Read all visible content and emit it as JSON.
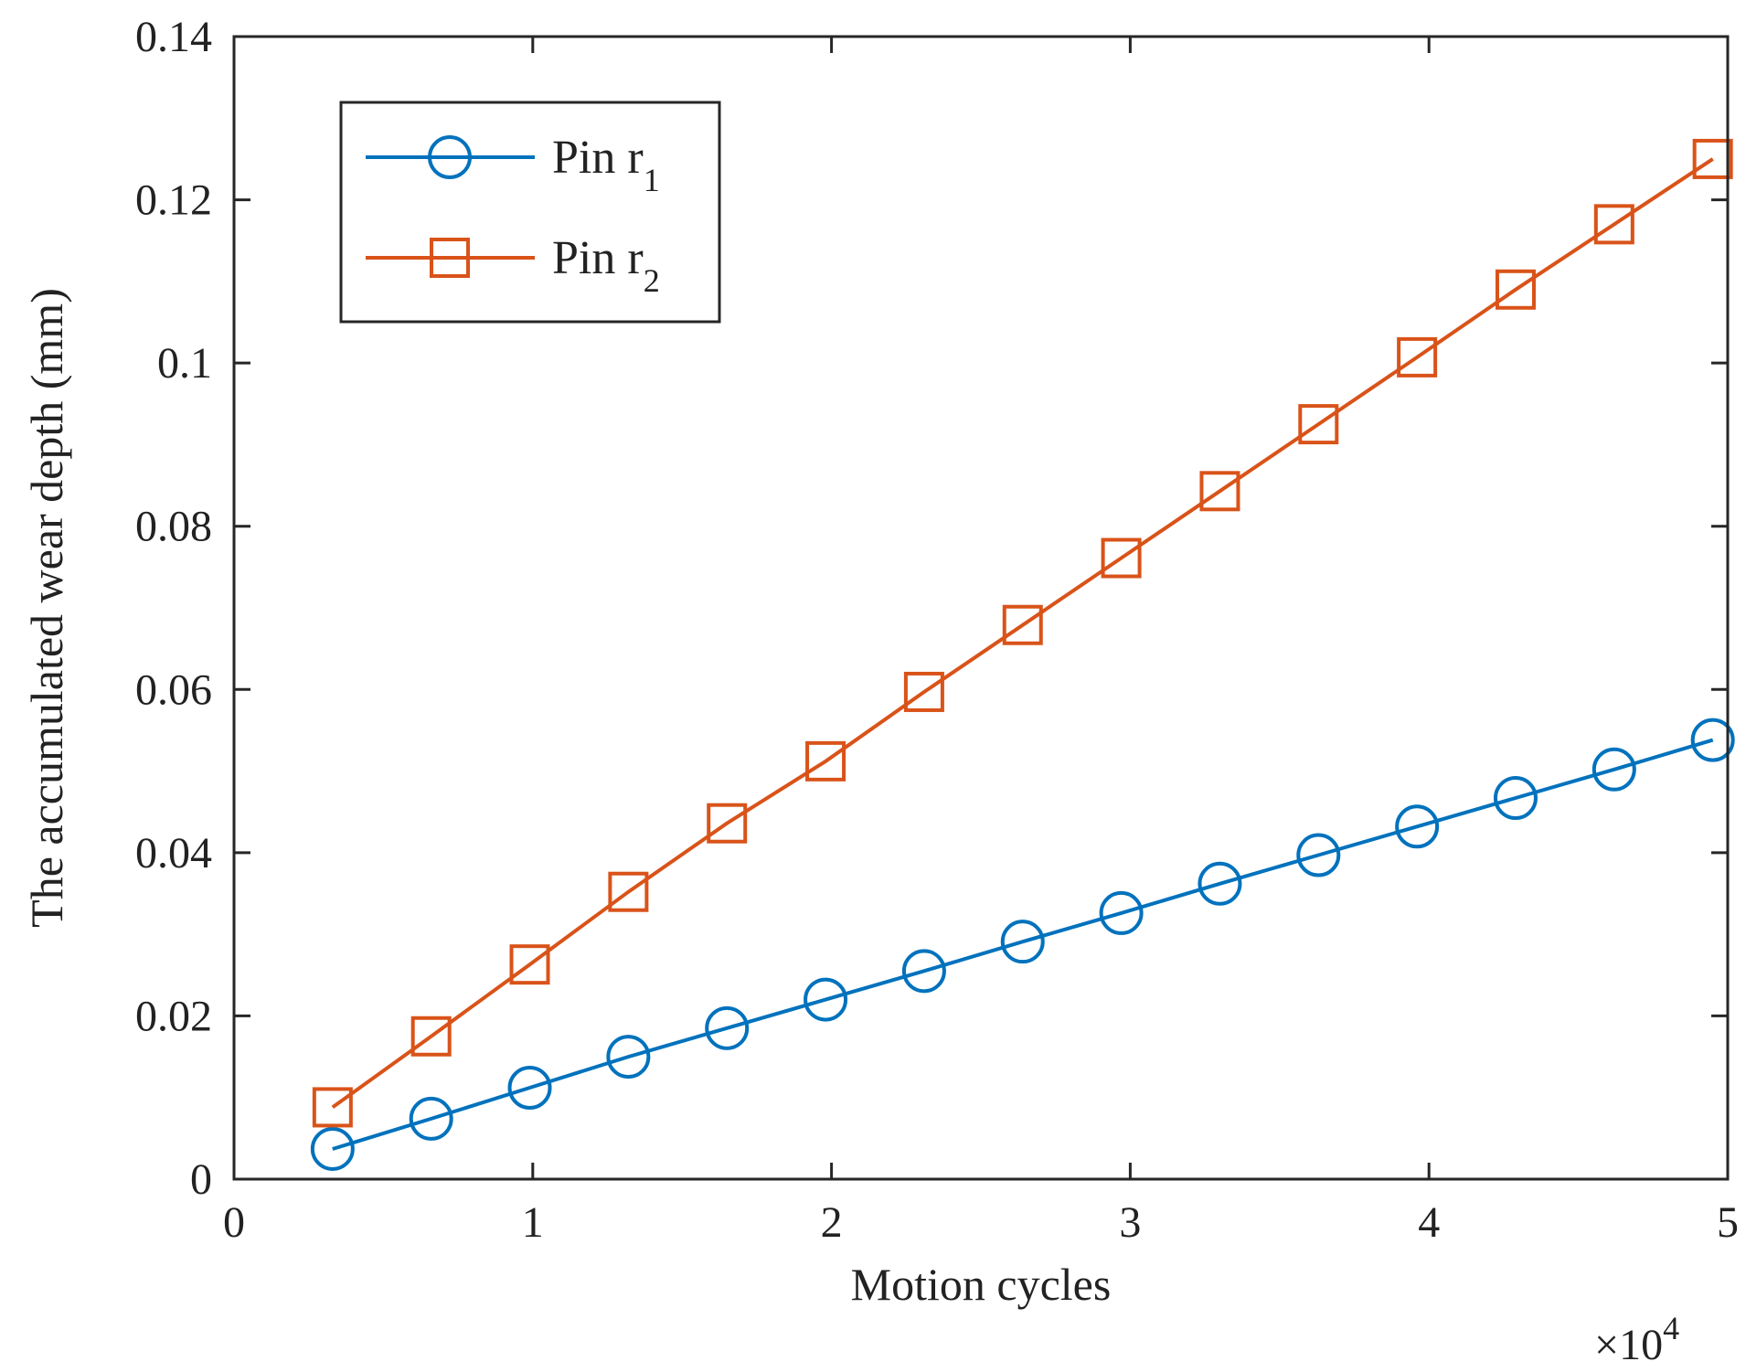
{
  "chart_data": {
    "type": "line",
    "title": "",
    "xlabel": "Motion cycles",
    "ylabel": "The accumulated wear depth (mm)",
    "x_multiplier_label": "×10",
    "x_multiplier_exponent": "4",
    "xlim": [
      0,
      5
    ],
    "ylim": [
      0,
      0.14
    ],
    "x_ticks": [
      0,
      1,
      2,
      3,
      4,
      5
    ],
    "x_tick_labels": [
      "0",
      "1",
      "2",
      "3",
      "4",
      "5"
    ],
    "y_ticks": [
      0,
      0.02,
      0.04,
      0.06,
      0.08,
      0.1,
      0.12,
      0.14
    ],
    "y_tick_labels": [
      "0",
      "0.02",
      "0.04",
      "0.06",
      "0.08",
      "0.1",
      "0.12",
      "0.14"
    ],
    "grid": false,
    "legend_position": "top-left",
    "x": [
      0.33,
      0.66,
      0.99,
      1.32,
      1.65,
      1.98,
      2.31,
      2.64,
      2.97,
      3.3,
      3.63,
      3.96,
      4.29,
      4.62,
      4.95
    ],
    "series": [
      {
        "name": "Pin r",
        "subscript": "1",
        "color": "#0072BD",
        "marker": "circle",
        "values": [
          0.0037,
          0.0074,
          0.0112,
          0.015,
          0.0185,
          0.022,
          0.0255,
          0.0291,
          0.0326,
          0.0362,
          0.0397,
          0.0432,
          0.0467,
          0.0502,
          0.0538
        ]
      },
      {
        "name": "Pin r",
        "subscript": "2",
        "color": "#D95319",
        "marker": "square",
        "values": [
          0.0088,
          0.0175,
          0.0263,
          0.0352,
          0.0436,
          0.0512,
          0.0597,
          0.0679,
          0.0761,
          0.0843,
          0.0925,
          0.1007,
          0.109,
          0.117,
          0.125
        ]
      }
    ]
  }
}
